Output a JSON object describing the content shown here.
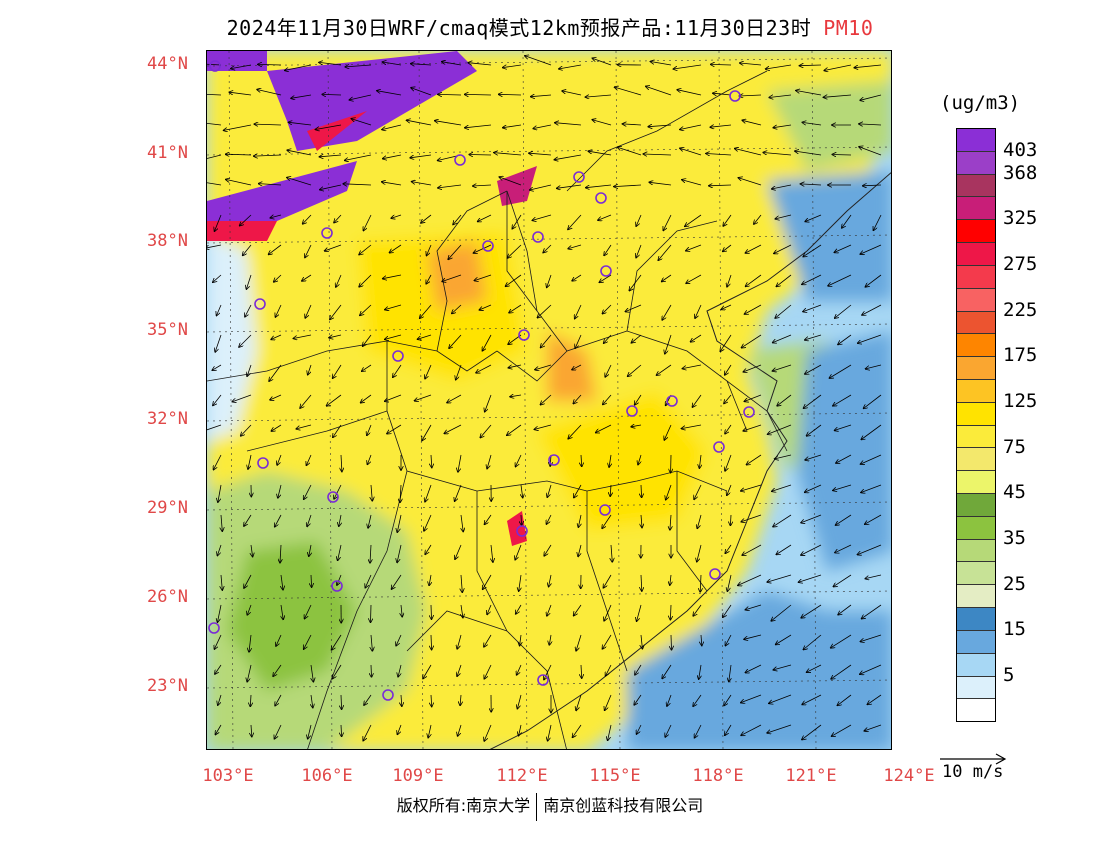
{
  "title": {
    "main": "2024年11月30日WRF/cmaq模式12km预报产品:11月30日23时",
    "pollutant": "PM10",
    "pollutant_color": "#e8383d"
  },
  "map": {
    "lat_ticks": [
      "44°N",
      "41°N",
      "38°N",
      "35°N",
      "32°N",
      "29°N",
      "26°N",
      "23°N"
    ],
    "lon_ticks": [
      "103°E",
      "106°E",
      "109°E",
      "112°E",
      "115°E",
      "118°E",
      "121°E",
      "124°E"
    ],
    "tick_color": "#e04848"
  },
  "legend": {
    "unit": "(ug/m3)",
    "levels": [
      {
        "label": "403",
        "color": "#8b2fd6"
      },
      {
        "label": "368",
        "color": "#9b3fc8"
      },
      {
        "label": "",
        "color": "#a8345f"
      },
      {
        "label": "325",
        "color": "#c81e78"
      },
      {
        "label": "",
        "color": "#ff0000"
      },
      {
        "label": "275",
        "color": "#ee1748"
      },
      {
        "label": "",
        "color": "#f43a4c"
      },
      {
        "label": "225",
        "color": "#f86262"
      },
      {
        "label": "",
        "color": "#ec5430"
      },
      {
        "label": "175",
        "color": "#fe8500"
      },
      {
        "label": "",
        "color": "#faa630"
      },
      {
        "label": "125",
        "color": "#fdc423"
      },
      {
        "label": "",
        "color": "#ffe300"
      },
      {
        "label": "75",
        "color": "#fbeb3a"
      },
      {
        "label": "",
        "color": "#f3e86c"
      },
      {
        "label": "45",
        "color": "#ecf56a"
      },
      {
        "label": "",
        "color": "#70a83a"
      },
      {
        "label": "35",
        "color": "#8cc33f"
      },
      {
        "label": "",
        "color": "#b6d978"
      },
      {
        "label": "25",
        "color": "#c7e296"
      },
      {
        "label": "",
        "color": "#e4edc4"
      },
      {
        "label": "15",
        "color": "#3d87c4"
      },
      {
        "label": "",
        "color": "#68a8de"
      },
      {
        "label": "5",
        "color": "#a7d7f4"
      },
      {
        "label": "",
        "color": "#dcf0fb"
      },
      {
        "label": "",
        "color": "#ffffff"
      }
    ],
    "wind_ref_label": "10 m/s"
  },
  "credit": {
    "left": "版权所有:南京大学",
    "right": "南京创蓝科技有限公司"
  }
}
